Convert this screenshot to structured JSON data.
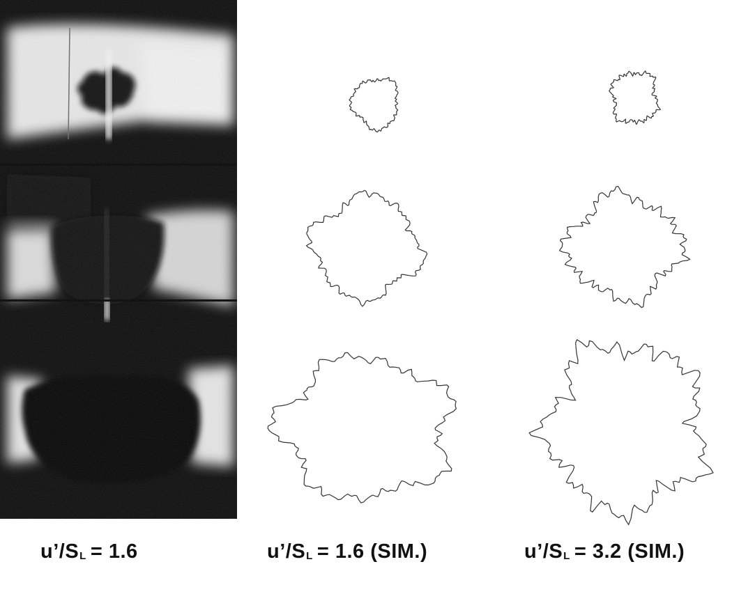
{
  "panels": [
    {
      "id": "experiment",
      "kind": "photograph"
    },
    {
      "id": "sim-1-6",
      "kind": "simulated-flame-fronts"
    },
    {
      "id": "sim-3-2",
      "kind": "simulated-flame-fronts"
    }
  ],
  "captions": {
    "experiment": {
      "main": "u’/S",
      "sub": "L",
      "rest": "= 1.6"
    },
    "sim_low": {
      "main": "u’/S",
      "sub": "L",
      "rest": "= 1.6 (SIM.)"
    },
    "sim_high": {
      "main": "u’/S",
      "sub": "L",
      "rest": "= 3.2 (SIM.)"
    }
  },
  "colors": {
    "ink": "#111111",
    "flame_line": "#333333",
    "background": "#ffffff"
  }
}
